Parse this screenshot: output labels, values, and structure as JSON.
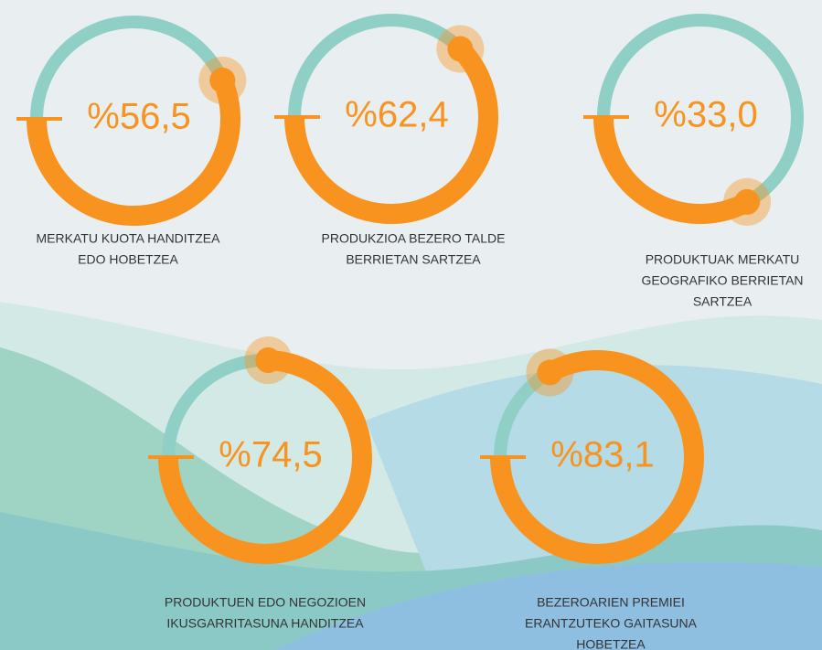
{
  "chart_data": {
    "type": "gauge",
    "categories": [
      [
        "MERKATU KUOTA HANDITZEA",
        "EDO HOBETZEA"
      ],
      [
        "PRODUKZIOA BEZERO TALDE",
        "BERRIETAN SARTZEA"
      ],
      [
        "PRODUKTUAK MERKATU",
        "GEOGRAFIKO BERRIETAN",
        "SARTZEA"
      ],
      [
        "PRODUKTUEN EDO NEGOZIOEN",
        "IKUSGARRITASUNA HANDITZEA"
      ],
      [
        "BEZEROARIEN PREMIEI",
        "ERANTZUTEKO GAITASUNA",
        "HOBETZEA"
      ]
    ],
    "values": [
      56.5,
      62.4,
      33.0,
      74.5,
      83.1
    ],
    "value_labels": [
      "%56,5",
      "%62,4",
      "%33,0",
      "%74,5",
      "%83,1"
    ],
    "color": "#f7931e",
    "track_color": "#8fcfc6"
  }
}
